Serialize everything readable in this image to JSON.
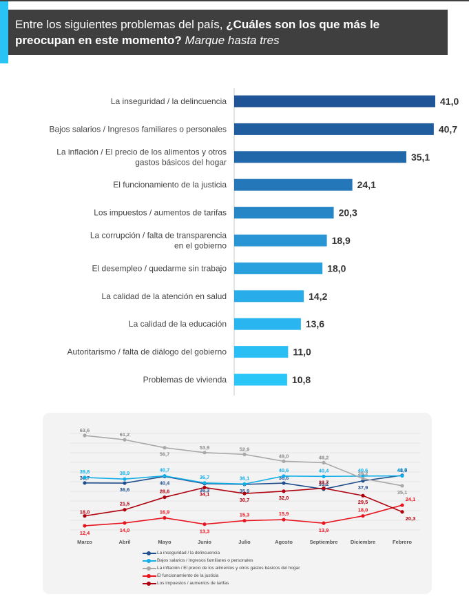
{
  "header": {
    "question_part1": "Entre los siguientes problemas del país, ",
    "question_bold": "¿Cuáles son los que más le preocupan en este momento?",
    "question_italic": " Marque hasta tres"
  },
  "chart_data": [
    {
      "type": "bar",
      "orientation": "horizontal",
      "categories": [
        "La inseguridad / la delincuencia",
        "Bajos salarios / Ingresos familiares o personales",
        "La inflación / El precio de los alimentos y otros gastos básicos del hogar",
        "El funcionamiento de la justicia",
        "Los impuestos / aumentos de tarifas",
        "La corrupción / falta de transparencia en el gobierno",
        "El desempleo / quedarme sin trabajo",
        "La calidad de la atención en salud",
        "La calidad de la educación",
        "Autoritarismo / falta de diálogo del gobierno",
        "Problemas de vivienda"
      ],
      "category_lines": [
        [
          "La inseguridad / la delincuencia"
        ],
        [
          "Bajos salarios / Ingresos familiares o personales"
        ],
        [
          "La inflación / El precio de los alimentos y otros",
          "gastos básicos del hogar"
        ],
        [
          "El funcionamiento de la justicia"
        ],
        [
          "Los impuestos / aumentos de tarifas"
        ],
        [
          "La corrupción / falta de transparencia",
          "en el gobierno"
        ],
        [
          "El desempleo / quedarme sin trabajo"
        ],
        [
          "La calidad de la atención en salud"
        ],
        [
          "La calidad de la educación"
        ],
        [
          "Autoritarismo / falta de diálogo del gobierno"
        ],
        [
          "Problemas de vivienda"
        ]
      ],
      "values": [
        41.0,
        40.7,
        35.1,
        24.1,
        20.3,
        18.9,
        18.0,
        14.2,
        13.6,
        11.0,
        10.8
      ],
      "value_labels": [
        "41,0",
        "40,7",
        "35,1",
        "24,1",
        "20,3",
        "18,9",
        "18,0",
        "14,2",
        "13,6",
        "11,0",
        "10,8"
      ],
      "bar_colors": [
        "#1f5596",
        "#1f5d9f",
        "#2168ab",
        "#2477b9",
        "#2786c6",
        "#2a95d4",
        "#29a1df",
        "#29adea",
        "#29b6f0",
        "#29bef4",
        "#29c6f7"
      ],
      "xlim": [
        0,
        41.0
      ]
    },
    {
      "type": "line",
      "x": [
        "Marzo",
        "Abril",
        "Mayo",
        "Junio",
        "Julio",
        "Agosto",
        "Septiembre",
        "Diciembre",
        "Febrero"
      ],
      "ylim": [
        10,
        65
      ],
      "series": [
        {
          "name": "La inseguridad / la delincuencia",
          "color": "#1f4e8c",
          "values": [
            36.7,
            36.6,
            40.4,
            36.3,
            35.9,
            36.6,
            33.2,
            37.9,
            41.0
          ],
          "labels": [
            "36,7",
            "36,6",
            "40,4",
            "36,3",
            "35,9",
            "36,6",
            "33,2",
            "37,9",
            "41,0"
          ]
        },
        {
          "name": "Bajos salarios / Ingresos familiares o personales",
          "color": "#12aee8",
          "values": [
            39.8,
            38.9,
            40.7,
            36.7,
            36.1,
            40.6,
            40.4,
            40.6,
            40.7
          ],
          "labels": [
            "39,8",
            "38,9",
            "40,7",
            "36,7",
            "36,1",
            "40,6",
            "40,4",
            "40,6",
            "40,7"
          ]
        },
        {
          "name": "La inflación / El precio de los alimentos y otros gastos básicos del hogar",
          "color": "#a8a8a8",
          "values": [
            63.6,
            61.2,
            56.7,
            53.9,
            52.9,
            49.0,
            48.2,
            39.2,
            35.1
          ],
          "labels": [
            "63,6",
            "61,2",
            "56,7",
            "53,9",
            "52,9",
            "49,0",
            "48,2",
            "39,2",
            "35,1"
          ]
        },
        {
          "name": "El funcionamiento de la justicia",
          "color": "#e8141e",
          "values": [
            12.4,
            14.0,
            16.9,
            13.3,
            15.3,
            15.9,
            13.9,
            18.0,
            24.1
          ],
          "labels": [
            "12,4",
            "14,0",
            "16,9",
            "13,3",
            "15,3",
            "15,9",
            "13,9",
            "18,0",
            "24,1"
          ]
        },
        {
          "name": "Los impuestos / aumentos de tarifas",
          "color": "#b0000e",
          "values": [
            18.0,
            21.5,
            28.6,
            34.1,
            30.7,
            32.0,
            33.7,
            29.5,
            20.3
          ],
          "labels": [
            "18,0",
            "21,5",
            "28,6",
            "34,1",
            "30,7",
            "32,0",
            "33,7",
            "29,5",
            "20,3"
          ]
        }
      ],
      "grid": true,
      "legend_position": "bottom"
    }
  ]
}
